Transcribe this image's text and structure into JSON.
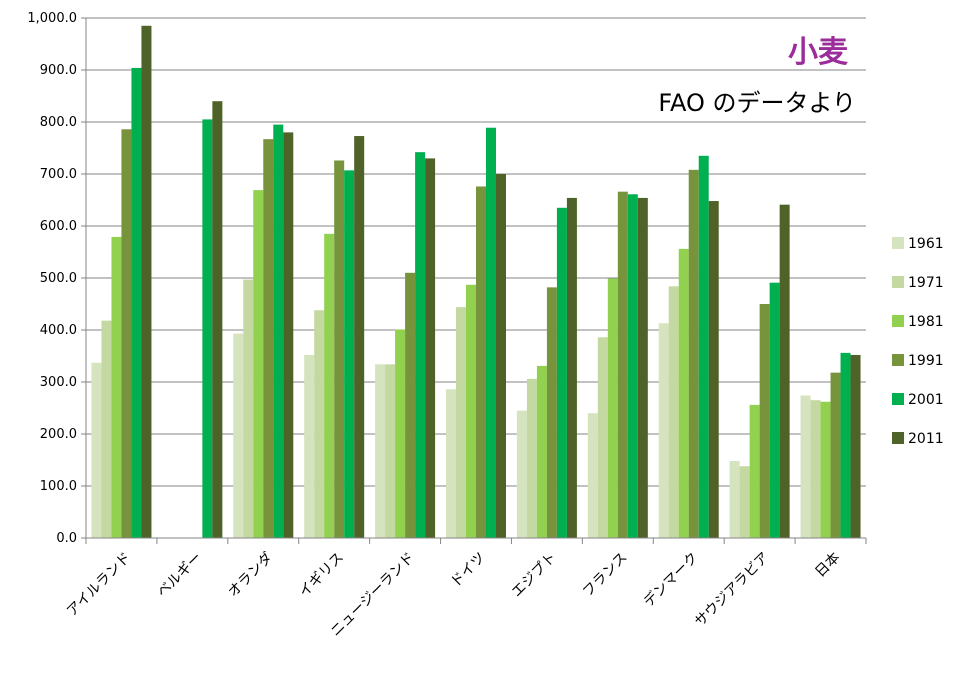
{
  "chart_data": {
    "type": "bar",
    "title": "小麦",
    "subtitle": "FAO のデータより",
    "title_color": "#9b2d9b",
    "ylim": [
      0,
      1000
    ],
    "y_ticks": [
      "0.0",
      "100.0",
      "200.0",
      "300.0",
      "400.0",
      "500.0",
      "600.0",
      "700.0",
      "800.0",
      "900.0",
      "1,000.0"
    ],
    "grid": true,
    "legend_position": "right",
    "categories": [
      "アイルランド",
      "ベルギー",
      "オランダ",
      "イギリス",
      "ニュージーランド",
      "ドイツ",
      "エジプト",
      "フランス",
      "デンマーク",
      "サウジアラビア",
      "日本"
    ],
    "series": [
      {
        "name": "1961",
        "color": "#d5e3bf",
        "values": [
          337,
          null,
          393,
          352,
          334,
          286,
          245,
          240,
          413,
          148,
          274
        ]
      },
      {
        "name": "1971",
        "color": "#c3d9a1",
        "values": [
          418,
          null,
          497,
          438,
          334,
          444,
          306,
          386,
          484,
          138,
          265
        ]
      },
      {
        "name": "1981",
        "color": "#92d050",
        "values": [
          579,
          null,
          669,
          585,
          401,
          487,
          331,
          499,
          556,
          256,
          262
        ]
      },
      {
        "name": "1991",
        "color": "#77933c",
        "values": [
          786,
          null,
          767,
          726,
          510,
          676,
          482,
          666,
          708,
          450,
          318
        ]
      },
      {
        "name": "2001",
        "color": "#00b050",
        "values": [
          904,
          805,
          795,
          707,
          742,
          789,
          635,
          661,
          735,
          491,
          356
        ]
      },
      {
        "name": "2011",
        "color": "#4f6228",
        "values": [
          985,
          840,
          780,
          773,
          730,
          700,
          654,
          654,
          648,
          641,
          352
        ]
      }
    ]
  }
}
